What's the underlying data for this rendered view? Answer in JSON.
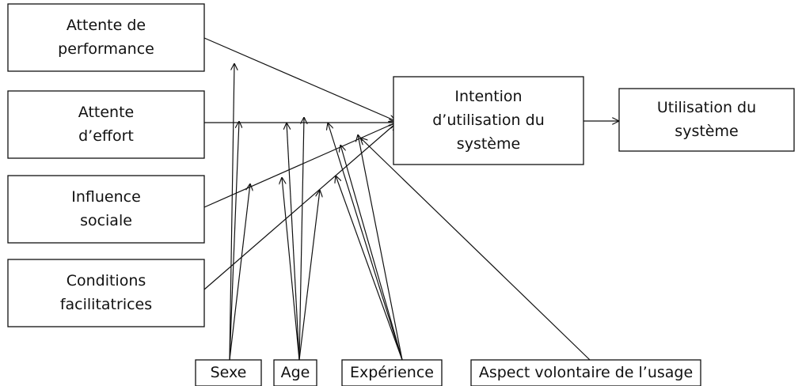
{
  "nodes": [
    {
      "lines": [
        "Attente de",
        "performance"
      ]
    },
    {
      "lines": [
        "Attente",
        "d’effort"
      ]
    },
    {
      "lines": [
        "Influence",
        "sociale"
      ]
    },
    {
      "lines": [
        "Conditions",
        "facilitatrices"
      ]
    },
    {
      "lines": [
        "Intention",
        "d’utilisation du",
        "système"
      ]
    },
    {
      "lines": [
        "Utilisation du",
        "système"
      ]
    },
    {
      "lines": [
        "Sexe"
      ]
    },
    {
      "lines": [
        "Age"
      ]
    },
    {
      "lines": [
        "Expérience"
      ]
    },
    {
      "lines": [
        "Aspect volontaire de l’usage"
      ]
    }
  ]
}
